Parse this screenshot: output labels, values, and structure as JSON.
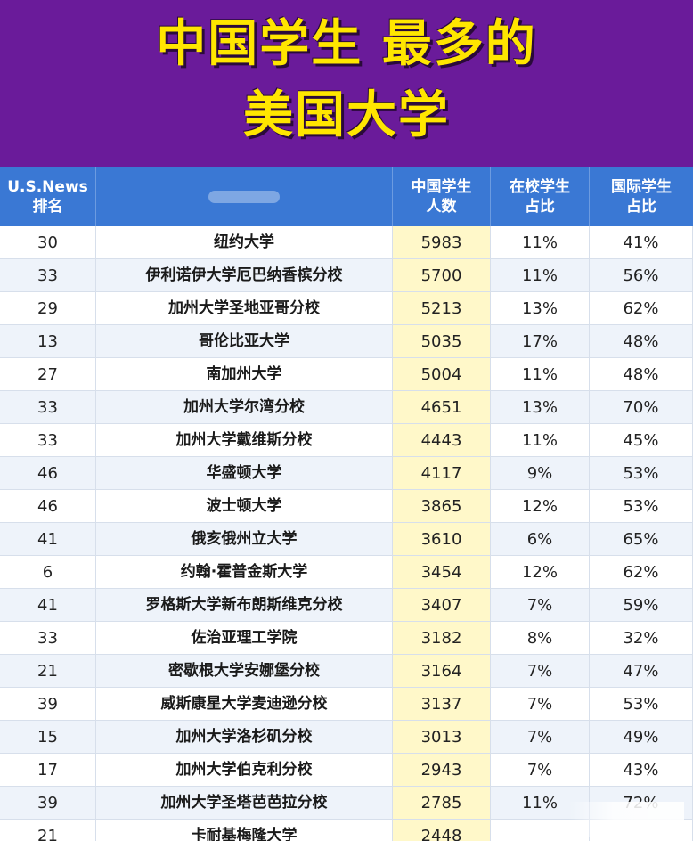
{
  "title": {
    "line1": "中国学生 最多的",
    "line2": "美国大学"
  },
  "header": {
    "rank_line1": "U.S.News",
    "rank_line2": "排名",
    "count_line1": "中国学生",
    "count_line2": "人数",
    "pct_line1": "在校学生",
    "pct_line2": "占比",
    "intl_line1": "国际学生",
    "intl_line2": "占比"
  },
  "rows": [
    {
      "rank": "30",
      "name": "纽约大学",
      "count": "5983",
      "pct": "11%",
      "intl": "41%"
    },
    {
      "rank": "33",
      "name": "伊利诺伊大学厄巴纳香槟分校",
      "count": "5700",
      "pct": "11%",
      "intl": "56%"
    },
    {
      "rank": "29",
      "name": "加州大学圣地亚哥分校",
      "count": "5213",
      "pct": "13%",
      "intl": "62%"
    },
    {
      "rank": "13",
      "name": "哥伦比亚大学",
      "count": "5035",
      "pct": "17%",
      "intl": "48%"
    },
    {
      "rank": "27",
      "name": "南加州大学",
      "count": "5004",
      "pct": "11%",
      "intl": "48%"
    },
    {
      "rank": "33",
      "name": "加州大学尔湾分校",
      "count": "4651",
      "pct": "13%",
      "intl": "70%"
    },
    {
      "rank": "33",
      "name": "加州大学戴维斯分校",
      "count": "4443",
      "pct": "11%",
      "intl": "45%"
    },
    {
      "rank": "46",
      "name": "华盛顿大学",
      "count": "4117",
      "pct": "9%",
      "intl": "53%"
    },
    {
      "rank": "46",
      "name": "波士顿大学",
      "count": "3865",
      "pct": "12%",
      "intl": "53%"
    },
    {
      "rank": "41",
      "name": "俄亥俄州立大学",
      "count": "3610",
      "pct": "6%",
      "intl": "65%"
    },
    {
      "rank": "6",
      "name": "约翰·霍普金斯大学",
      "count": "3454",
      "pct": "12%",
      "intl": "62%"
    },
    {
      "rank": "41",
      "name": "罗格斯大学新布朗斯维克分校",
      "count": "3407",
      "pct": "7%",
      "intl": "59%"
    },
    {
      "rank": "33",
      "name": "佐治亚理工学院",
      "count": "3182",
      "pct": "8%",
      "intl": "32%"
    },
    {
      "rank": "21",
      "name": "密歇根大学安娜堡分校",
      "count": "3164",
      "pct": "7%",
      "intl": "47%"
    },
    {
      "rank": "39",
      "name": "威斯康星大学麦迪逊分校",
      "count": "3137",
      "pct": "7%",
      "intl": "53%"
    },
    {
      "rank": "15",
      "name": "加州大学洛杉矶分校",
      "count": "3013",
      "pct": "7%",
      "intl": "49%"
    },
    {
      "rank": "17",
      "name": "加州大学伯克利分校",
      "count": "2943",
      "pct": "7%",
      "intl": "43%"
    },
    {
      "rank": "39",
      "name": "加州大学圣塔芭芭拉分校",
      "count": "2785",
      "pct": "11%",
      "intl": "72%"
    },
    {
      "rank": "21",
      "name": "卡耐基梅隆大学",
      "count": "2448",
      "pct": "",
      "intl": ""
    }
  ]
}
